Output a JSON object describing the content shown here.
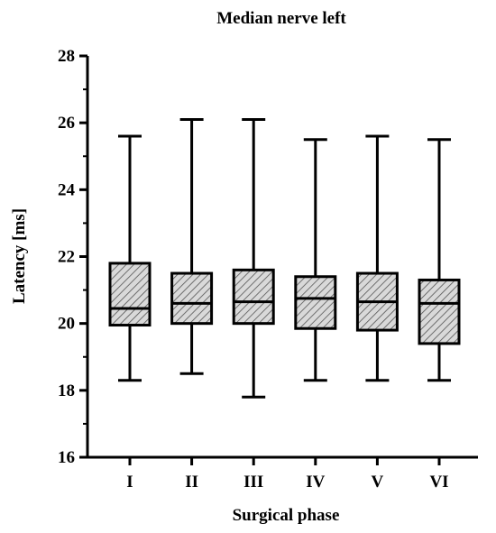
{
  "chart_data": {
    "type": "box",
    "title": "Median nerve left",
    "xlabel": "Surgical phase",
    "ylabel": "Latency  [ms]",
    "ylim": [
      16,
      28
    ],
    "yticks": [
      "16",
      "18",
      "20",
      "22",
      "24",
      "26",
      "28"
    ],
    "grid": false,
    "legend": "none",
    "fill_pattern": "diagonal-hatch",
    "box_fill": "#d9d9d9",
    "line_color": "#000000",
    "categories": [
      "I",
      "II",
      "III",
      "IV",
      "V",
      "VI"
    ],
    "boxes": [
      {
        "category": "I",
        "min": 18.3,
        "q1": 19.95,
        "median": 20.45,
        "q3": 21.8,
        "max": 25.6
      },
      {
        "category": "II",
        "min": 18.5,
        "q1": 20.0,
        "median": 20.6,
        "q3": 21.5,
        "max": 26.1
      },
      {
        "category": "III",
        "min": 17.8,
        "q1": 20.0,
        "median": 20.65,
        "q3": 21.6,
        "max": 26.1
      },
      {
        "category": "IV",
        "min": 18.3,
        "q1": 19.85,
        "median": 20.75,
        "q3": 21.4,
        "max": 25.5
      },
      {
        "category": "V",
        "min": 18.3,
        "q1": 19.8,
        "median": 20.65,
        "q3": 21.5,
        "max": 25.6
      },
      {
        "category": "VI",
        "min": 18.3,
        "q1": 19.4,
        "median": 20.6,
        "q3": 21.3,
        "max": 25.5
      }
    ]
  }
}
